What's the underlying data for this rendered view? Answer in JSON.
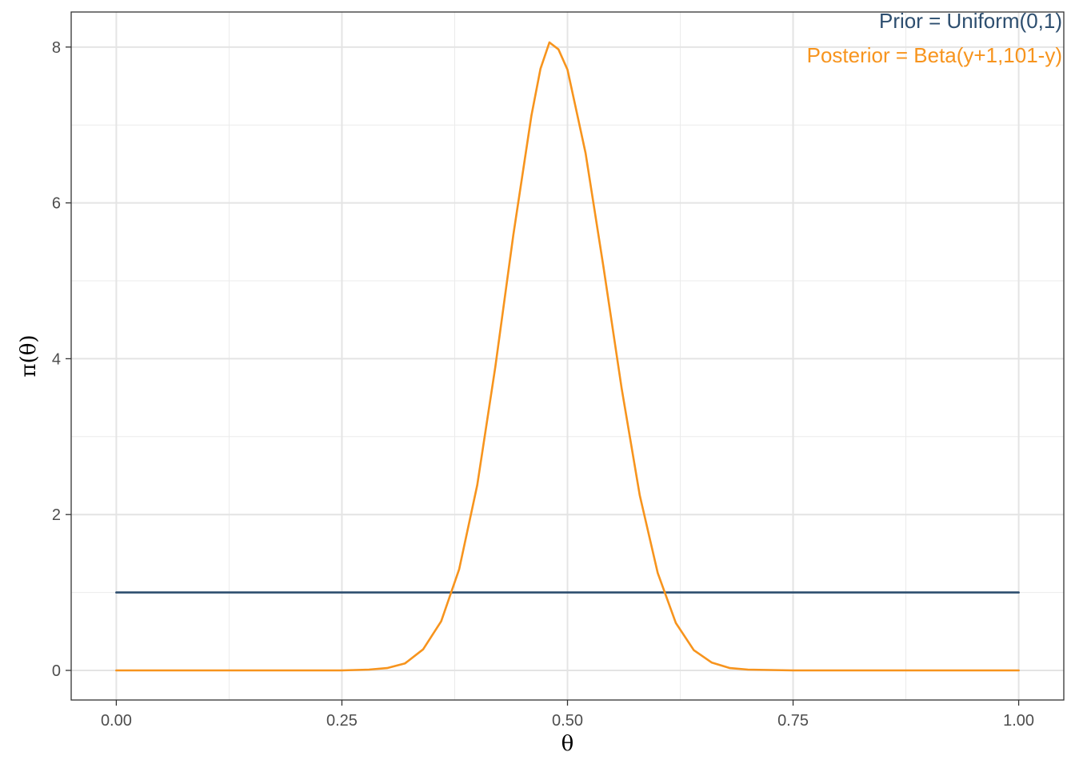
{
  "chart_data": {
    "type": "line",
    "title": "",
    "xlabel": "θ",
    "ylabel": "π(θ)",
    "xlim": [
      -0.05,
      1.05
    ],
    "ylim": [
      -0.38,
      8.45
    ],
    "x_ticks": [
      0.0,
      0.25,
      0.5,
      0.75,
      1.0
    ],
    "x_tick_labels": [
      "0.00",
      "0.25",
      "0.50",
      "0.75",
      "1.00"
    ],
    "y_ticks": [
      0,
      2,
      4,
      6,
      8
    ],
    "y_tick_labels": [
      "0",
      "2",
      "4",
      "6",
      "8"
    ],
    "x_minor_ticks": [
      0.125,
      0.375,
      0.625,
      0.875
    ],
    "y_minor_ticks": [
      1,
      3,
      5,
      7
    ],
    "grid": true,
    "legend_placement": "top-right",
    "series": [
      {
        "name": "Prior = Uniform(0,1)",
        "color": "#2d4e6f",
        "x": [
          0.0,
          1.0
        ],
        "y": [
          1.0,
          1.0
        ]
      },
      {
        "name": "Posterior = Beta(y+1,101-y)",
        "color": "#f7941d",
        "x": [
          0.0,
          0.25,
          0.28,
          0.3,
          0.32,
          0.34,
          0.36,
          0.38,
          0.4,
          0.42,
          0.44,
          0.46,
          0.47,
          0.48,
          0.49,
          0.5,
          0.52,
          0.54,
          0.56,
          0.58,
          0.6,
          0.62,
          0.64,
          0.66,
          0.68,
          0.7,
          0.75,
          1.0
        ],
        "y": [
          0.0,
          0.0,
          0.01,
          0.03,
          0.09,
          0.27,
          0.63,
          1.3,
          2.38,
          3.89,
          5.59,
          7.12,
          7.72,
          8.06,
          7.97,
          7.71,
          6.64,
          5.17,
          3.62,
          2.25,
          1.25,
          0.61,
          0.26,
          0.1,
          0.03,
          0.01,
          0.0,
          0.0
        ]
      }
    ]
  }
}
